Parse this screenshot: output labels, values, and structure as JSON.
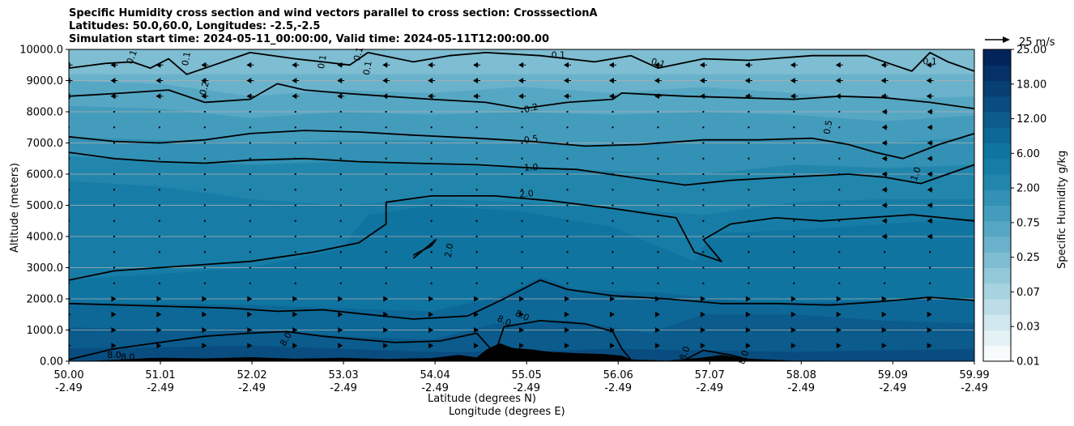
{
  "chart_data": {
    "type": "heatmap",
    "title_lines": [
      "Specific Humidity cross section and wind vectors parallel to cross section: CrosssectionA",
      "Latitudes: 50.0,60.0, Longitudes: -2.5,-2.5",
      "Simulation start time: 2024-05-11_00:00:00, Valid time: 2024-05-11T12:00:00.00"
    ],
    "xlabel_lat": "Latitude (degrees N)",
    "xlabel_lon": "Longitude (degrees E)",
    "ylabel": "Altitude (meters)",
    "ylim": [
      0,
      10000
    ],
    "yticks": [
      "0.00",
      "1000.0",
      "2000.0",
      "3000.0",
      "4000.0",
      "5000.0",
      "6000.0",
      "7000.0",
      "8000.0",
      "9000.0",
      "10000.0"
    ],
    "ytick_values": [
      0,
      1000,
      2000,
      3000,
      4000,
      5000,
      6000,
      7000,
      8000,
      9000,
      10000
    ],
    "xlim": [
      50.0,
      59.99
    ],
    "xtick_values": [
      50.0,
      51.01,
      52.02,
      53.03,
      54.04,
      55.05,
      56.06,
      57.07,
      58.08,
      59.09,
      59.99
    ],
    "xticks_lat": [
      "50.00",
      "51.01",
      "52.02",
      "53.03",
      "54.04",
      "55.05",
      "56.06",
      "57.07",
      "58.08",
      "59.09",
      "59.99"
    ],
    "xticks_lon": [
      "-2.49",
      "-2.49",
      "-2.49",
      "-2.49",
      "-2.49",
      "-2.49",
      "-2.49",
      "-2.49",
      "-2.49",
      "-2.49",
      "-2.49"
    ],
    "grid": "horizontal",
    "colorbar": {
      "label": "Specific Humidity g/kg",
      "levels": [
        0.01,
        0.02,
        0.03,
        0.05,
        0.07,
        0.1,
        0.25,
        0.35,
        0.5,
        0.75,
        1.0,
        1.5,
        2.0,
        4.0,
        6.0,
        9.0,
        12.0,
        15.0,
        18.0,
        22.0,
        25.0
      ],
      "tick_labels": [
        "0.01",
        "0.03",
        "0.07",
        "0.25",
        "0.75",
        "2.00",
        "6.00",
        "12.00",
        "18.00",
        "25.00"
      ],
      "colors": [
        "#f7fbfc",
        "#e4f1f5",
        "#d0e7ee",
        "#bcdde7",
        "#a7d2e0",
        "#93c8d9",
        "#7ebdd2",
        "#6ab2cb",
        "#56a7c3",
        "#449cbc",
        "#3291b4",
        "#2286ac",
        "#177da6",
        "#0f74a0",
        "#0d6897",
        "#0b5b8c",
        "#094d80",
        "#073f73",
        "#053166",
        "#03245a"
      ]
    },
    "quiver_key": {
      "label": "25 m/s",
      "value": 25
    },
    "contour_labels": [
      {
        "text": "0.1",
        "x": 50.7,
        "y": 9750,
        "rot": -70
      },
      {
        "text": "0.1",
        "x": 51.3,
        "y": 9700,
        "rot": -80
      },
      {
        "text": "0.2",
        "x": 51.5,
        "y": 8750,
        "rot": -75
      },
      {
        "text": "0.1",
        "x": 52.8,
        "y": 9600,
        "rot": -80
      },
      {
        "text": "0.1",
        "x": 53.2,
        "y": 9850,
        "rot": -75
      },
      {
        "text": "0.1",
        "x": 53.3,
        "y": 9400,
        "rot": -80
      },
      {
        "text": "0.1",
        "x": 55.4,
        "y": 9800,
        "rot": 0
      },
      {
        "text": "0.1",
        "x": 56.5,
        "y": 9550,
        "rot": 15
      },
      {
        "text": "0.1",
        "x": 59.5,
        "y": 9600,
        "rot": 0
      },
      {
        "text": "0.2",
        "x": 55.1,
        "y": 8100,
        "rot": -15
      },
      {
        "text": "0.5",
        "x": 55.1,
        "y": 7100,
        "rot": -8
      },
      {
        "text": "0.5",
        "x": 58.38,
        "y": 7500,
        "rot": -80
      },
      {
        "text": "1.0",
        "x": 55.1,
        "y": 6200,
        "rot": -3
      },
      {
        "text": "1.0",
        "x": 59.35,
        "y": 6000,
        "rot": -70
      },
      {
        "text": "2.0",
        "x": 55.05,
        "y": 5350,
        "rot": -5
      },
      {
        "text": "2.0",
        "x": 54.2,
        "y": 3550,
        "rot": -80
      },
      {
        "text": "8.0",
        "x": 55.0,
        "y": 1450,
        "rot": 25
      },
      {
        "text": "8.0",
        "x": 54.8,
        "y": 1280,
        "rot": 25
      },
      {
        "text": "8.0",
        "x": 52.4,
        "y": 700,
        "rot": -60
      },
      {
        "text": "8.0",
        "x": 50.5,
        "y": 180,
        "rot": 0
      },
      {
        "text": "8.0",
        "x": 50.65,
        "y": 120,
        "rot": 0
      },
      {
        "text": "8.0",
        "x": 56.8,
        "y": 250,
        "rot": -70
      },
      {
        "text": "8.0",
        "x": 57.45,
        "y": 120,
        "rot": -70
      }
    ]
  }
}
